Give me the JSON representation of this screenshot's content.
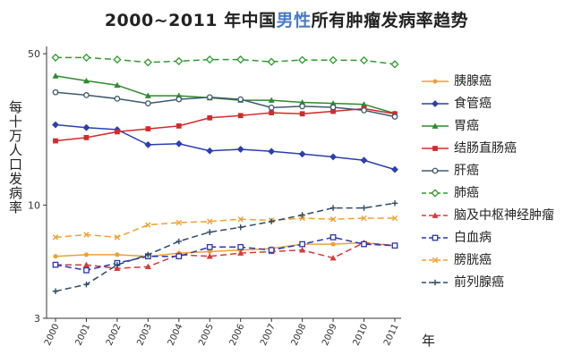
{
  "title": {
    "prefix": "2000~2011 年中国",
    "highlight": "男性",
    "suffix": "所有肿瘤发病率趋势"
  },
  "colors": {
    "title_highlight": "#4a7bc8",
    "axis": "#333333"
  },
  "chart_data": {
    "type": "line",
    "title": "2000~2011 年中国男性所有肿瘤发病率趋势",
    "xlabel": "年",
    "ylabel": "每十万人口发病率",
    "yscale": "log",
    "ylim": [
      3,
      52
    ],
    "yticks": [
      3,
      10,
      50
    ],
    "grid": false,
    "legend_position": "right",
    "x": [
      2000,
      2001,
      2002,
      2003,
      2004,
      2005,
      2006,
      2007,
      2008,
      2009,
      2010,
      2011
    ],
    "series": [
      {
        "name": "胰腺癌",
        "color": "#f0a030",
        "dash": "solid",
        "marker": "circle",
        "values": [
          5.8,
          5.9,
          5.9,
          5.8,
          6.0,
          6.1,
          6.2,
          6.3,
          6.6,
          6.6,
          6.7,
          6.5
        ]
      },
      {
        "name": "食管癌",
        "color": "#2a3fb0",
        "dash": "solid",
        "marker": "diamond",
        "values": [
          23.5,
          22.8,
          22.3,
          19.0,
          19.2,
          17.8,
          18.1,
          17.7,
          17.2,
          16.7,
          16.1,
          14.6
        ]
      },
      {
        "name": "胃癌",
        "color": "#2e8b2e",
        "dash": "solid",
        "marker": "triangle",
        "values": [
          39.5,
          37.5,
          35.8,
          32.0,
          32.0,
          31.3,
          30.5,
          30.5,
          29.8,
          29.5,
          29.2,
          26.5
        ]
      },
      {
        "name": "结肠直肠癌",
        "color": "#d42a2a",
        "dash": "solid",
        "marker": "square",
        "values": [
          19.8,
          20.5,
          21.8,
          22.5,
          23.2,
          25.3,
          25.9,
          26.7,
          26.4,
          27.1,
          27.9,
          26.4
        ]
      },
      {
        "name": "肝癌",
        "color": "#3e5a6e",
        "dash": "solid",
        "marker": "circle-open",
        "values": [
          33.2,
          32.2,
          31.0,
          29.5,
          30.8,
          31.5,
          30.8,
          28.2,
          28.6,
          28.3,
          27.4,
          25.6
        ]
      },
      {
        "name": "肺癌",
        "color": "#2e9a2e",
        "dash": "dash",
        "marker": "diamond-open",
        "values": [
          48.0,
          48.0,
          47.0,
          45.6,
          46.2,
          47.0,
          47.0,
          45.9,
          46.8,
          46.7,
          46.6,
          44.7
        ]
      },
      {
        "name": "脑及中枢神经肿瘤",
        "color": "#d63a3a",
        "dash": "dash",
        "marker": "triangle",
        "values": [
          5.3,
          5.3,
          5.1,
          5.2,
          5.9,
          5.8,
          6.0,
          6.1,
          6.2,
          5.7,
          6.7,
          6.5
        ]
      },
      {
        "name": "白血病",
        "color": "#2a35b0",
        "dash": "dash",
        "marker": "square-open",
        "values": [
          5.3,
          5.0,
          5.4,
          5.8,
          5.8,
          6.4,
          6.4,
          6.2,
          6.6,
          7.1,
          6.6,
          6.5
        ]
      },
      {
        "name": "膀胱癌",
        "color": "#f0a030",
        "dash": "dash",
        "marker": "x",
        "values": [
          7.1,
          7.3,
          7.1,
          8.1,
          8.3,
          8.4,
          8.6,
          8.5,
          8.7,
          8.6,
          8.7,
          8.7
        ]
      },
      {
        "name": "前列腺癌",
        "color": "#2e4a66",
        "dash": "dash",
        "marker": "plus",
        "values": [
          4.0,
          4.3,
          5.3,
          5.9,
          6.8,
          7.5,
          7.9,
          8.4,
          9.0,
          9.7,
          9.7,
          10.2
        ]
      }
    ]
  }
}
